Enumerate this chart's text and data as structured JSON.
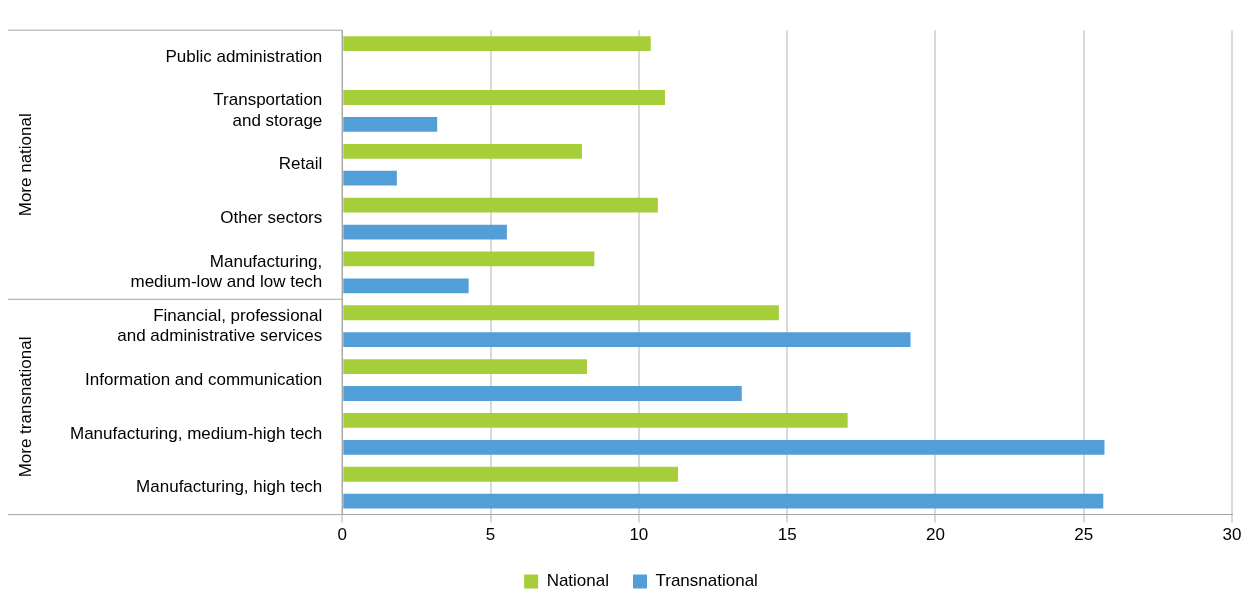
{
  "chart_data": {
    "type": "bar",
    "orientation": "horizontal",
    "categories": [
      "Public administration",
      "Transportation\nand storage",
      "Retail",
      "Other sectors",
      "Manufacturing,\nmedium-low and low tech",
      "Financial, professional\nand administrative services",
      "Information and communication",
      "Manufacturing, medium-high tech",
      "Manufacturing, high tech"
    ],
    "series": [
      {
        "name": "National",
        "color": "#a6ce39",
        "values": [
          10.4,
          10.88,
          8.08,
          10.64,
          8.5,
          14.72,
          8.25,
          17.04,
          11.32
        ]
      },
      {
        "name": "Transnational",
        "color": "#529fd7",
        "values": [
          null,
          3.2,
          1.84,
          5.55,
          4.26,
          19.16,
          13.47,
          25.7,
          25.66
        ]
      }
    ],
    "xlim": [
      0,
      30
    ],
    "xticks": [
      0,
      5,
      10,
      15,
      20,
      25,
      30
    ],
    "grid": "x",
    "legend": "bottom",
    "annotations": [
      "More national",
      "More transnational"
    ]
  }
}
